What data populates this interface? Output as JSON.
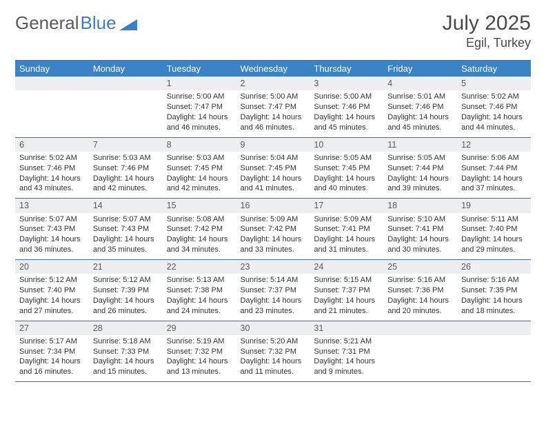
{
  "brand": {
    "word1": "General",
    "word2": "Blue"
  },
  "title": {
    "monthYear": "July 2025",
    "location": "Egil, Turkey"
  },
  "colors": {
    "headerBg": "#3b82c7",
    "headerText": "#ffffff",
    "dayBarBg": "#eceeef",
    "border": "#3b6fa8",
    "text": "#333333",
    "brandGray": "#5a5a5a",
    "brandBlue": "#3b7fc4",
    "pageBg": "#ffffff"
  },
  "weekdays": [
    "Sunday",
    "Monday",
    "Tuesday",
    "Wednesday",
    "Thursday",
    "Friday",
    "Saturday"
  ],
  "weeks": [
    [
      null,
      null,
      {
        "n": "1",
        "sr": "5:00 AM",
        "ss": "7:47 PM",
        "dl": "14 hours and 46 minutes."
      },
      {
        "n": "2",
        "sr": "5:00 AM",
        "ss": "7:47 PM",
        "dl": "14 hours and 46 minutes."
      },
      {
        "n": "3",
        "sr": "5:00 AM",
        "ss": "7:46 PM",
        "dl": "14 hours and 45 minutes."
      },
      {
        "n": "4",
        "sr": "5:01 AM",
        "ss": "7:46 PM",
        "dl": "14 hours and 45 minutes."
      },
      {
        "n": "5",
        "sr": "5:02 AM",
        "ss": "7:46 PM",
        "dl": "14 hours and 44 minutes."
      }
    ],
    [
      {
        "n": "6",
        "sr": "5:02 AM",
        "ss": "7:46 PM",
        "dl": "14 hours and 43 minutes."
      },
      {
        "n": "7",
        "sr": "5:03 AM",
        "ss": "7:46 PM",
        "dl": "14 hours and 42 minutes."
      },
      {
        "n": "8",
        "sr": "5:03 AM",
        "ss": "7:45 PM",
        "dl": "14 hours and 42 minutes."
      },
      {
        "n": "9",
        "sr": "5:04 AM",
        "ss": "7:45 PM",
        "dl": "14 hours and 41 minutes."
      },
      {
        "n": "10",
        "sr": "5:05 AM",
        "ss": "7:45 PM",
        "dl": "14 hours and 40 minutes."
      },
      {
        "n": "11",
        "sr": "5:05 AM",
        "ss": "7:44 PM",
        "dl": "14 hours and 39 minutes."
      },
      {
        "n": "12",
        "sr": "5:06 AM",
        "ss": "7:44 PM",
        "dl": "14 hours and 37 minutes."
      }
    ],
    [
      {
        "n": "13",
        "sr": "5:07 AM",
        "ss": "7:43 PM",
        "dl": "14 hours and 36 minutes."
      },
      {
        "n": "14",
        "sr": "5:07 AM",
        "ss": "7:43 PM",
        "dl": "14 hours and 35 minutes."
      },
      {
        "n": "15",
        "sr": "5:08 AM",
        "ss": "7:42 PM",
        "dl": "14 hours and 34 minutes."
      },
      {
        "n": "16",
        "sr": "5:09 AM",
        "ss": "7:42 PM",
        "dl": "14 hours and 33 minutes."
      },
      {
        "n": "17",
        "sr": "5:09 AM",
        "ss": "7:41 PM",
        "dl": "14 hours and 31 minutes."
      },
      {
        "n": "18",
        "sr": "5:10 AM",
        "ss": "7:41 PM",
        "dl": "14 hours and 30 minutes."
      },
      {
        "n": "19",
        "sr": "5:11 AM",
        "ss": "7:40 PM",
        "dl": "14 hours and 29 minutes."
      }
    ],
    [
      {
        "n": "20",
        "sr": "5:12 AM",
        "ss": "7:40 PM",
        "dl": "14 hours and 27 minutes."
      },
      {
        "n": "21",
        "sr": "5:12 AM",
        "ss": "7:39 PM",
        "dl": "14 hours and 26 minutes."
      },
      {
        "n": "22",
        "sr": "5:13 AM",
        "ss": "7:38 PM",
        "dl": "14 hours and 24 minutes."
      },
      {
        "n": "23",
        "sr": "5:14 AM",
        "ss": "7:37 PM",
        "dl": "14 hours and 23 minutes."
      },
      {
        "n": "24",
        "sr": "5:15 AM",
        "ss": "7:37 PM",
        "dl": "14 hours and 21 minutes."
      },
      {
        "n": "25",
        "sr": "5:16 AM",
        "ss": "7:36 PM",
        "dl": "14 hours and 20 minutes."
      },
      {
        "n": "26",
        "sr": "5:16 AM",
        "ss": "7:35 PM",
        "dl": "14 hours and 18 minutes."
      }
    ],
    [
      {
        "n": "27",
        "sr": "5:17 AM",
        "ss": "7:34 PM",
        "dl": "14 hours and 16 minutes."
      },
      {
        "n": "28",
        "sr": "5:18 AM",
        "ss": "7:33 PM",
        "dl": "14 hours and 15 minutes."
      },
      {
        "n": "29",
        "sr": "5:19 AM",
        "ss": "7:32 PM",
        "dl": "14 hours and 13 minutes."
      },
      {
        "n": "30",
        "sr": "5:20 AM",
        "ss": "7:32 PM",
        "dl": "14 hours and 11 minutes."
      },
      {
        "n": "31",
        "sr": "5:21 AM",
        "ss": "7:31 PM",
        "dl": "14 hours and 9 minutes."
      },
      null,
      null
    ]
  ],
  "labels": {
    "sunrise": "Sunrise: ",
    "sunset": "Sunset: ",
    "daylight": "Daylight: "
  }
}
